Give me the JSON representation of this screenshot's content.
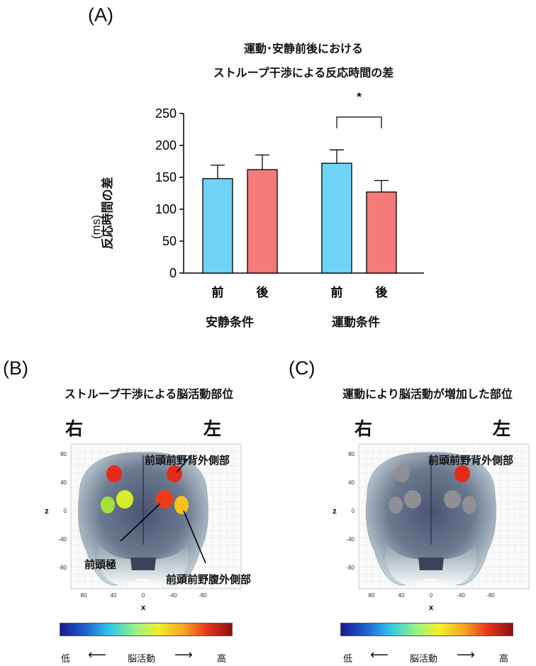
{
  "panel_a": {
    "label": "(A)",
    "title_line1": "運動･安静前後における",
    "title_line2": "ストループ干渉による反応時間の差",
    "ylabel_line1": "反応時間の差",
    "ylabel_line2": "(ms)",
    "significance": "*",
    "group_labels": [
      "安静条件",
      "運動条件"
    ]
  },
  "chart_data": {
    "type": "bar",
    "title": "運動･安静前後における ストループ干渉による反応時間の差",
    "ylabel": "反応時間の差 (ms)",
    "ylim": [
      0,
      250
    ],
    "yticks": [
      0,
      50,
      100,
      150,
      200,
      250
    ],
    "groups": [
      "安静条件",
      "運動条件"
    ],
    "categories": [
      "前",
      "後",
      "前",
      "後"
    ],
    "values": [
      148,
      162,
      172,
      127
    ],
    "errors": [
      21,
      23,
      21,
      18
    ],
    "colors": [
      "#6fd3f6",
      "#f47b7a",
      "#6fd3f6",
      "#f47b7a"
    ],
    "significance": [
      {
        "between": [
          2,
          3
        ],
        "label": "*"
      }
    ]
  },
  "panel_b": {
    "label": "(B)",
    "title": "ストループ干渉による脳活動部位",
    "right": "右",
    "left": "左",
    "annot_dlpfc": "前頭前野背外側部",
    "annot_fp": "前頭極",
    "annot_vlpfc": "前頭前野腹外側部"
  },
  "panel_c": {
    "label": "(C)",
    "title": "運動により脳活動が増加した部位",
    "right": "右",
    "left": "左",
    "annot_dlpfc": "前頭前野背外側部"
  },
  "brain_axes": {
    "x_ticks": [
      "80",
      "40",
      "0",
      "-40",
      "-80"
    ],
    "z_ticks": [
      "80",
      "40",
      "0",
      "-40",
      "-80"
    ],
    "x_label": "x",
    "z_label": "z"
  },
  "colorscale": {
    "low": "低",
    "mid": "脳活動",
    "high": "高",
    "colors": [
      "#1a1a8c",
      "#1e5fd0",
      "#2ec6e8",
      "#8ff08a",
      "#f2ef2a",
      "#f5a623",
      "#e8351c",
      "#8b1010"
    ]
  }
}
